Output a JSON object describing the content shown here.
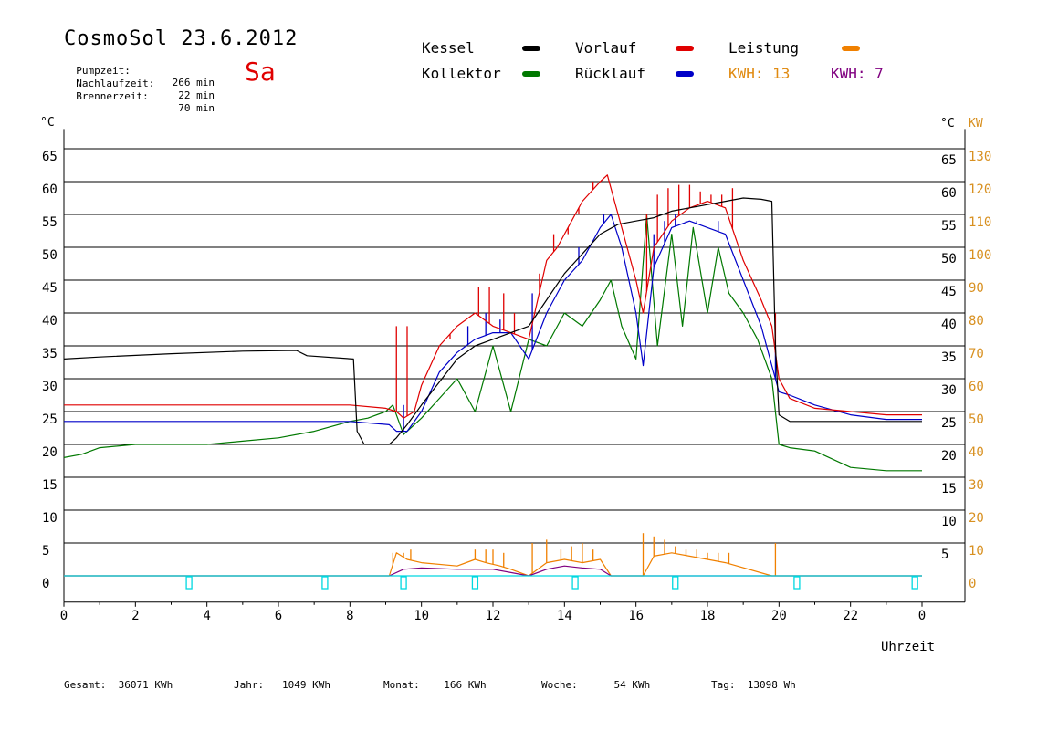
{
  "header": {
    "title": "CosmoSol 23.6.2012",
    "day": "Sa",
    "pumpzeit": {
      "label": "Pumpzeit:",
      "value": "266 min"
    },
    "nachlaufzeit": {
      "label": "Nachlaufzeit:",
      "value": "22 min"
    },
    "brennerzeit": {
      "label": "Brennerzeit:",
      "value": "70 min"
    }
  },
  "legend": {
    "kessel": "Kessel",
    "vorlauf": "Vorlauf",
    "leistung": "Leistung",
    "kollektor": "Kollektor",
    "ruecklauf": "Rücklauf",
    "kwh1": "KWH: 13",
    "kwh2": "KWH: 7"
  },
  "colors": {
    "kessel": "#000000",
    "vorlauf": "#e00000",
    "ruecklauf": "#0000c8",
    "kollektor": "#007800",
    "leistung": "#f08000",
    "kwh2": "#800080",
    "pump": "#00d8e0",
    "axis_orange": "#d89020"
  },
  "axes": {
    "left_unit": "°C",
    "right_unit_c": "°C",
    "right_unit_kw": "KW",
    "xlabel": "Uhrzeit"
  },
  "footer": {
    "gesamt": "Gesamt:  36071 KWh",
    "jahr": "Jahr:   1049 KWh",
    "monat": "Monat:    166 KWh",
    "woche": "Woche:      54 KWh",
    "tag": "Tag:  13098 Wh"
  },
  "chart_data": {
    "type": "line",
    "x_unit": "hours",
    "xlim": [
      0,
      24
    ],
    "x_ticks": [
      "0",
      "2",
      "4",
      "6",
      "8",
      "10",
      "12",
      "14",
      "16",
      "18",
      "20",
      "22",
      "0"
    ],
    "ylim": [
      -4,
      68
    ],
    "y_ticks_left": [
      "0",
      "5",
      "10",
      "15",
      "20",
      "25",
      "30",
      "35",
      "40",
      "45",
      "50",
      "55",
      "60",
      "65"
    ],
    "y_ticks_right_c": [
      "5",
      "10",
      "15",
      "20",
      "25",
      "30",
      "35",
      "40",
      "45",
      "50",
      "55",
      "60",
      "65"
    ],
    "y_ticks_right_kw": [
      "0",
      "10",
      "20",
      "30",
      "40",
      "50",
      "60",
      "70",
      "80",
      "90",
      "100",
      "110",
      "120",
      "130"
    ],
    "grid": true,
    "series": [
      {
        "name": "Kessel",
        "color_key": "kessel",
        "x": [
          0,
          1,
          3,
          5,
          6.5,
          6.8,
          8.1,
          8.2,
          8.4,
          9.1,
          9.3,
          9.6,
          10,
          10.5,
          11,
          11.5,
          12,
          12.5,
          13,
          13.5,
          14,
          14.5,
          15,
          15.5,
          16,
          16.5,
          17,
          17.5,
          18,
          18.5,
          19,
          19.5,
          19.8,
          19.9,
          20,
          20.3,
          21,
          22,
          23,
          24
        ],
        "y": [
          33,
          33.3,
          33.8,
          34.2,
          34.3,
          33.5,
          33,
          22,
          20,
          20,
          21,
          23,
          26,
          29.5,
          33,
          35,
          36,
          37,
          38,
          42,
          46,
          49,
          52,
          53.5,
          54,
          54.5,
          55.5,
          56,
          56.5,
          57,
          57.5,
          57.3,
          57,
          35,
          24.5,
          23.5,
          23.5,
          23.5,
          23.5,
          23.5
        ]
      },
      {
        "name": "Vorlauf",
        "color_key": "vorlauf",
        "x": [
          0,
          3,
          6,
          8,
          9,
          9.3,
          9.5,
          9.8,
          10,
          10.5,
          11,
          11.5,
          12,
          12.5,
          13,
          13.5,
          13.8,
          14,
          14.5,
          15,
          15.2,
          15.5,
          16,
          16.2,
          16.5,
          17,
          17.5,
          18,
          18.5,
          19,
          19.5,
          19.8,
          20,
          20.3,
          21,
          22,
          23,
          24
        ],
        "y": [
          26,
          26,
          26,
          26,
          25.5,
          25,
          24,
          25,
          29,
          35,
          38,
          40,
          38,
          37,
          36,
          48,
          50,
          52,
          57,
          60,
          61,
          55,
          45,
          40,
          50,
          54,
          56,
          57,
          56,
          48,
          42,
          38,
          30,
          27,
          25.5,
          25,
          24.5,
          24.5
        ],
        "spikes": [
          [
            9.3,
            38
          ],
          [
            9.6,
            38
          ],
          [
            10.8,
            36
          ],
          [
            11.6,
            44
          ],
          [
            11.9,
            44
          ],
          [
            12.3,
            43
          ],
          [
            12.6,
            40
          ],
          [
            13.3,
            46
          ],
          [
            13.7,
            52
          ],
          [
            14.1,
            52
          ],
          [
            14.4,
            55
          ],
          [
            14.8,
            60
          ],
          [
            15.2,
            61
          ],
          [
            16.3,
            55
          ],
          [
            16.6,
            58
          ],
          [
            16.9,
            59
          ],
          [
            17.2,
            59.5
          ],
          [
            17.5,
            59.5
          ],
          [
            17.8,
            58.5
          ],
          [
            18.1,
            58
          ],
          [
            18.4,
            58
          ],
          [
            18.7,
            59
          ],
          [
            19.9,
            40
          ]
        ]
      },
      {
        "name": "Rücklauf",
        "color_key": "ruecklauf",
        "x": [
          0,
          3,
          6,
          8,
          9.1,
          9.3,
          9.6,
          10,
          10.5,
          11,
          11.5,
          12,
          12.5,
          13,
          13.5,
          14,
          14.5,
          15,
          15.3,
          15.6,
          16,
          16.2,
          16.5,
          17,
          17.5,
          18,
          18.5,
          19,
          19.5,
          19.8,
          20,
          20.3,
          21,
          22,
          23,
          24
        ],
        "y": [
          23.5,
          23.5,
          23.5,
          23.5,
          23,
          22,
          22,
          25,
          31,
          34,
          36,
          37,
          37,
          33,
          40,
          45,
          48,
          53,
          55,
          50,
          40,
          32,
          47,
          53,
          54,
          53,
          52,
          45,
          38,
          32,
          28,
          27.5,
          26,
          24.5,
          23.8,
          23.8
        ],
        "spikes": [
          [
            9.5,
            26
          ],
          [
            11.3,
            38
          ],
          [
            11.8,
            40
          ],
          [
            12.2,
            39
          ],
          [
            13.1,
            43
          ],
          [
            14.4,
            50
          ],
          [
            15.1,
            55
          ],
          [
            16.5,
            52
          ],
          [
            16.8,
            54
          ],
          [
            17.1,
            55
          ],
          [
            17.4,
            54
          ],
          [
            17.7,
            54
          ],
          [
            18,
            53
          ],
          [
            18.3,
            54
          ],
          [
            19.9,
            35
          ]
        ]
      },
      {
        "name": "Kollektor",
        "color_key": "kollektor",
        "x": [
          0,
          0.5,
          1,
          2,
          3,
          4,
          5,
          6,
          7,
          8,
          8.5,
          9,
          9.2,
          9.5,
          10,
          10.5,
          11,
          11.5,
          12,
          12.5,
          13,
          13.5,
          14,
          14.5,
          15,
          15.3,
          15.6,
          16,
          16.3,
          16.6,
          17,
          17.3,
          17.6,
          18,
          18.3,
          18.6,
          19,
          19.4,
          19.8,
          20,
          20.3,
          21,
          22,
          23,
          24
        ],
        "y": [
          18,
          18.5,
          19.5,
          20,
          20,
          20,
          20.5,
          21,
          22,
          23.5,
          24,
          25,
          26,
          21.5,
          24,
          27,
          30,
          25,
          35,
          25,
          36,
          35,
          40,
          38,
          42,
          45,
          38,
          33,
          55,
          35,
          52,
          38,
          53,
          40,
          50,
          43,
          40,
          36,
          30,
          20,
          19.5,
          19,
          16.5,
          16,
          16
        ]
      },
      {
        "name": "Leistung",
        "color_key": "leistung",
        "x": [
          0,
          9.1,
          9.3,
          9.6,
          10,
          11,
          11.5,
          11.8,
          12.2,
          12.5,
          13,
          13.5,
          14,
          14.5,
          15,
          15.3,
          16.2,
          16.5,
          17,
          17.5,
          18,
          18.5,
          19.8,
          20,
          24
        ],
        "y": [
          0,
          0,
          3.5,
          2.5,
          2,
          1.5,
          2.5,
          2,
          1.5,
          1,
          0,
          2,
          2.5,
          2,
          2.5,
          0,
          0,
          3,
          3.5,
          3,
          2.5,
          2,
          0,
          0,
          0
        ],
        "spikes": [
          [
            9.2,
            3.5
          ],
          [
            9.5,
            3.5
          ],
          [
            9.7,
            4
          ],
          [
            11.5,
            4
          ],
          [
            11.8,
            4
          ],
          [
            12,
            4
          ],
          [
            12.3,
            3.5
          ],
          [
            13.1,
            5
          ],
          [
            13.5,
            5.5
          ],
          [
            13.9,
            4
          ],
          [
            14.2,
            4.5
          ],
          [
            14.5,
            5
          ],
          [
            14.8,
            4
          ],
          [
            16.2,
            6.5
          ],
          [
            16.5,
            6
          ],
          [
            16.8,
            5.5
          ],
          [
            17.1,
            4.5
          ],
          [
            17.4,
            4
          ],
          [
            17.7,
            4
          ],
          [
            18,
            3.5
          ],
          [
            18.3,
            3.5
          ],
          [
            18.6,
            3.5
          ],
          [
            19.9,
            5
          ]
        ]
      },
      {
        "name": "KWH 7",
        "color_key": "kwh2",
        "x": [
          0,
          9.1,
          9.5,
          10,
          11,
          11.5,
          12,
          12.5,
          13,
          13.5,
          14,
          14.5,
          15,
          15.3,
          24
        ],
        "y": [
          0,
          0,
          1,
          1.2,
          1,
          1,
          1,
          0.5,
          0,
          1,
          1.5,
          1.2,
          1,
          0,
          0
        ]
      },
      {
        "name": "Pumpe",
        "color_key": "pump",
        "x": [
          0,
          24
        ],
        "y": [
          0,
          0
        ],
        "markers": [
          3.5,
          7.3,
          9.5,
          11.5,
          14.3,
          17.1,
          20.5,
          23.8
        ]
      }
    ]
  }
}
